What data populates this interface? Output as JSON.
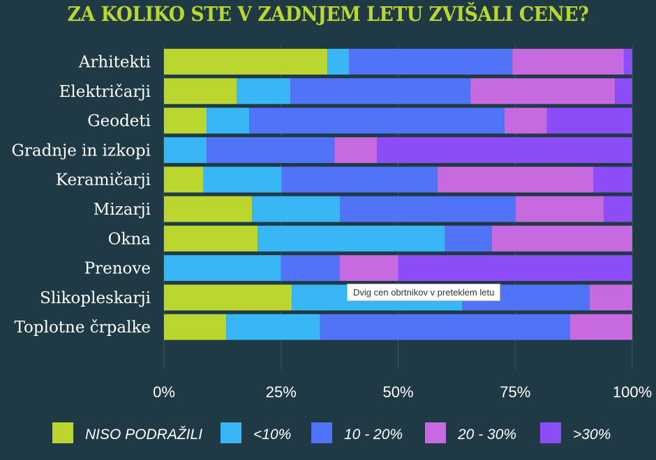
{
  "chart_data": {
    "type": "bar",
    "orientation": "horizontal",
    "stacked": true,
    "normalized": true,
    "title": "ZA KOLIKO STE V ZADNJEM LETU ZVIŠALI CENE?",
    "tooltip": "Dvig cen obrtnikov v preteklem letu",
    "categories": [
      "Arhitekti",
      "Električarji",
      "Geodeti",
      "Gradnje in izkopi",
      "Keramičarji",
      "Mizarji",
      "Okna",
      "Prenove",
      "Slikopleskarji",
      "Toplotne črpalke"
    ],
    "series": [
      {
        "name": "NISO PODRAŽILI",
        "color": "#bcd630",
        "values": [
          34.9,
          15.5,
          9.1,
          0,
          8.4,
          18.8,
          20,
          0,
          27.3,
          13.3
        ]
      },
      {
        "name": "<10%",
        "color": "#38b6f5",
        "values": [
          4.6,
          11.5,
          9.1,
          9.1,
          16.7,
          18.8,
          40,
          25,
          36.4,
          20
        ]
      },
      {
        "name": "10 - 20%",
        "color": "#5073f8",
        "values": [
          34.9,
          38.5,
          54.5,
          27.3,
          33.3,
          37.5,
          10,
          12.5,
          27.2,
          53.4
        ]
      },
      {
        "name": "20 - 30%",
        "color": "#c76ae0",
        "values": [
          23.8,
          30.8,
          9.1,
          9.1,
          33.3,
          18.8,
          30,
          12.5,
          9.1,
          13.3
        ]
      },
      {
        "name": ">30%",
        "color": "#8c4cf8",
        "values": [
          1.8,
          3.7,
          18.2,
          54.5,
          8.3,
          6.1,
          0,
          50,
          0,
          0
        ]
      }
    ],
    "xticks": [
      "0%",
      "25%",
      "50%",
      "75%",
      "100%"
    ],
    "xlim": [
      0,
      100
    ],
    "grid": true,
    "legend": "bottom"
  }
}
